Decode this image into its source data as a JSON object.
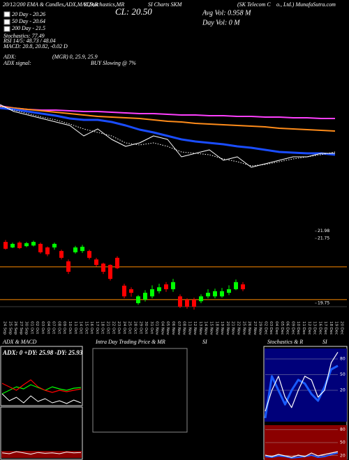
{
  "header": {
    "title_parts": [
      "20/12/200 EMA & Candles,ADX,MACD,R",
      "SI,Stochastics,MR",
      "SI Charts SKM",
      "(SK Telecom C",
      "o., Ltd.) MunafaSutra.com"
    ],
    "close": "CL: 20.50",
    "avg_vol": "Avg Vol: 0.958 M",
    "day_vol": "Day Vol: 0 M",
    "legend": [
      "20 Day - 20.26",
      "50 Day - 20.64",
      "200 Day - 21.5",
      "Stochastics: 77.49",
      "RSI 14/5: 48.73 / 48.04",
      "MACD: 20.8, 20.82, -0.02 D"
    ],
    "adx": "ADX:",
    "adx_value": "(MGR) 0, 25.9, 25.9",
    "adx_signal": "ADX signal:",
    "adx_signal_value": "BUY Slowing @ 7%"
  },
  "chart_data": [
    {
      "type": "line",
      "ylim": [
        18.1,
        22.5
      ],
      "series": [
        {
          "color": "#ff40ff",
          "values": [
            22.42,
            22.3,
            22.22,
            22.18,
            22.18,
            22.14,
            22.1,
            22.1,
            22.06,
            22.02,
            21.98,
            21.98,
            21.94,
            21.9,
            21.9,
            21.86,
            21.86,
            21.82,
            21.82,
            21.78,
            21.78,
            21.74,
            21.74,
            21.7,
            21.7
          ]
        },
        {
          "color": "#ff8c1a",
          "values": [
            22.38,
            22.3,
            22.22,
            22.14,
            22.06,
            21.98,
            21.9,
            21.82,
            21.78,
            21.74,
            21.7,
            21.62,
            21.54,
            21.5,
            21.42,
            21.38,
            21.34,
            21.3,
            21.26,
            21.22,
            21.14,
            21.1,
            21.06,
            21.02,
            20.98
          ]
        },
        {
          "color": "#1a4dff",
          "values": [
            22.3,
            22.22,
            22.1,
            21.98,
            21.86,
            21.7,
            21.62,
            21.62,
            21.5,
            21.3,
            21.06,
            20.9,
            20.7,
            20.5,
            20.38,
            20.3,
            20.22,
            20.1,
            20.02,
            19.9,
            19.78,
            19.74,
            19.7,
            19.7,
            19.62
          ]
        },
        {
          "color": "#ffffff",
          "values": [
            22.5,
            22.1,
            21.9,
            21.7,
            21.5,
            21.3,
            20.7,
            21.1,
            20.5,
            20.1,
            20.3,
            20.7,
            20.5,
            19.5,
            19.7,
            19.9,
            19.3,
            19.5,
            18.9,
            19.1,
            19.3,
            19.5,
            19.5,
            19.7,
            19.7
          ]
        },
        {
          "color": "#ffffff",
          "dash": true,
          "values": [
            22.42,
            22.18,
            21.98,
            21.78,
            21.62,
            21.38,
            21.1,
            20.9,
            20.7,
            20.3,
            20.18,
            20.3,
            20.1,
            19.78,
            19.7,
            19.62,
            19.38,
            19.22,
            18.98,
            19.06,
            19.22,
            19.38,
            19.5,
            19.62,
            19.78
          ]
        }
      ]
    },
    {
      "type": "candlestick",
      "ylim": [
        19.3,
        22.0
      ],
      "yticks": [
        21.98,
        21.75,
        19.75
      ],
      "grid": false,
      "up_color": "#00ff00",
      "down_color": "#ff0000",
      "hline_color": "#ff8c00",
      "hlines": [
        20.87,
        19.86
      ],
      "open": [
        21.64,
        21.47,
        21.62,
        21.51,
        21.53,
        21.58,
        21.47,
        21.47,
        21.36,
        21.04,
        21.32,
        21.36,
        21.36,
        21.1,
        20.97,
        20.93,
        21.15,
        20.29,
        20.18,
        19.75,
        19.86,
        19.96,
        20.12,
        20.33,
        20.18,
        19.96,
        19.86,
        19.86,
        19.81,
        19.96,
        19.96,
        19.96,
        20.07,
        20.18,
        20.33
      ],
      "high": [
        21.7,
        21.62,
        21.66,
        21.64,
        21.68,
        21.62,
        21.5,
        21.62,
        21.4,
        21.1,
        21.52,
        21.55,
        21.4,
        21.15,
        21.0,
        20.95,
        21.2,
        20.35,
        20.24,
        20.0,
        20.15,
        20.3,
        20.35,
        20.4,
        20.5,
        20.02,
        19.9,
        19.92,
        20.02,
        20.18,
        20.2,
        20.22,
        20.3,
        20.48,
        20.4
      ],
      "low": [
        21.4,
        21.45,
        21.42,
        21.48,
        21.5,
        21.28,
        21.2,
        21.4,
        21.1,
        20.65,
        21.28,
        21.3,
        21.1,
        20.88,
        20.65,
        20.45,
        20.8,
        19.9,
        19.95,
        19.7,
        19.8,
        19.9,
        20.05,
        20.1,
        20.1,
        19.6,
        19.58,
        19.55,
        19.75,
        19.9,
        19.9,
        19.92,
        20.0,
        20.15,
        20.12
      ],
      "close": [
        21.43,
        21.58,
        21.45,
        21.6,
        21.64,
        21.32,
        21.26,
        21.58,
        21.15,
        20.72,
        21.47,
        21.49,
        21.15,
        20.93,
        20.72,
        20.5,
        20.83,
        19.96,
        20.07,
        19.96,
        20.07,
        20.18,
        20.24,
        20.18,
        20.4,
        19.64,
        19.64,
        19.64,
        19.96,
        20.07,
        20.12,
        20.12,
        20.18,
        20.4,
        20.18
      ]
    },
    {
      "type": "axis",
      "categories": [
        "24 Sep",
        "25 Sep",
        "26 Sep",
        "27 Sep",
        "30 Sep",
        "01 Oct",
        "02 Oct",
        "03 Oct",
        "04 Oct",
        "07 Oct",
        "08 Oct",
        "09 Oct",
        "10 Oct",
        "11 Oct",
        "14 Oct",
        "15 Oct",
        "16 Oct",
        "17 Oct",
        "18 Oct",
        "21 Oct",
        "22 Oct",
        "23 Oct",
        "24 Oct",
        "25 Oct",
        "28 Oct",
        "29 Oct",
        "30 Oct",
        "31 Oct",
        "01 Nov",
        "04 Nov",
        "05 Nov",
        "06 Nov",
        "07 Nov",
        "08 Nov",
        "11 Nov",
        "12 Nov",
        "13 Nov",
        "14 Nov",
        "15 Nov",
        "18 Nov",
        "19 Nov",
        "20 Nov",
        "21 Nov",
        "22 Nov",
        "25 Nov",
        "26 Nov",
        "27 Nov",
        "29 Nov",
        "02 Dec",
        "03 Dec",
        "04 Dec",
        "05 Dec",
        "06 Dec",
        "09 Dec",
        "10 Dec",
        "11 Dec",
        "12 Dec",
        "13 Dec",
        "16 Dec",
        "17 Dec",
        "18 Dec",
        "19 Dec",
        "20 Dec"
      ]
    },
    {
      "type": "line",
      "title": "ADX & MACD",
      "label": "ADX: 0 +DY: 25.98 -DY: 25.93",
      "ylim": [
        0,
        50
      ],
      "series": [
        {
          "color": "#00ff00",
          "values": [
            10,
            13.3,
            16.7,
            14.7,
            18.7,
            16,
            13.3,
            16.7,
            14.7,
            13.3,
            15.3,
            16
          ]
        },
        {
          "color": "#ff0000",
          "values": [
            20,
            16.7,
            13.3,
            18.7,
            23.3,
            16.7,
            13.3,
            11.3,
            13.3,
            12,
            13.3,
            14.7
          ]
        },
        {
          "color": "#ffffff",
          "values": [
            10,
            3.3,
            6.7,
            1.3,
            8,
            2.7,
            5.3,
            1.3,
            3.3,
            0.7,
            4,
            1.3
          ]
        }
      ]
    },
    {
      "type": "line",
      "ylim": [
        -0.5,
        0.5
      ],
      "series": [
        {
          "color": "#ffffff",
          "values": [
            -0.33,
            -0.35,
            -0.3,
            -0.33,
            -0.36,
            -0.32,
            -0.34,
            -0.33,
            -0.35,
            -0.31,
            -0.33,
            -0.32
          ]
        }
      ]
    },
    {
      "type": "panel",
      "title": "Intra Day Trading Price & MR",
      "title2": "SI"
    },
    {
      "type": "line",
      "title": "Stochastics & R",
      "title2": "SI",
      "background": "#00007a",
      "ylim": [
        -40,
        100
      ],
      "yticks": [
        80,
        50,
        20
      ],
      "grid": true,
      "series": [
        {
          "color": "#1a5cff",
          "values": [
            -33,
            47,
            20,
            -7,
            20,
            40,
            33,
            13,
            0,
            27,
            60,
            67
          ]
        },
        {
          "color": "#ffffff",
          "values": [
            -20,
            20,
            47,
            7,
            -13,
            20,
            47,
            40,
            7,
            20,
            73,
            93
          ]
        }
      ]
    },
    {
      "type": "line",
      "background": "#8b0000",
      "ylim": [
        10,
        90
      ],
      "yticks": [
        80,
        50,
        20
      ],
      "grid": true,
      "series": [
        {
          "color": "#1a5cff",
          "values": [
            18,
            16.4,
            19.6,
            18,
            14.8,
            16.4,
            18,
            21.2,
            16.4,
            18,
            22.8,
            26
          ]
        },
        {
          "color": "#ffffff",
          "values": [
            21.2,
            18,
            22.8,
            19.6,
            16.4,
            21.2,
            18,
            26,
            19.6,
            22.8,
            26,
            29.2
          ]
        }
      ]
    }
  ]
}
